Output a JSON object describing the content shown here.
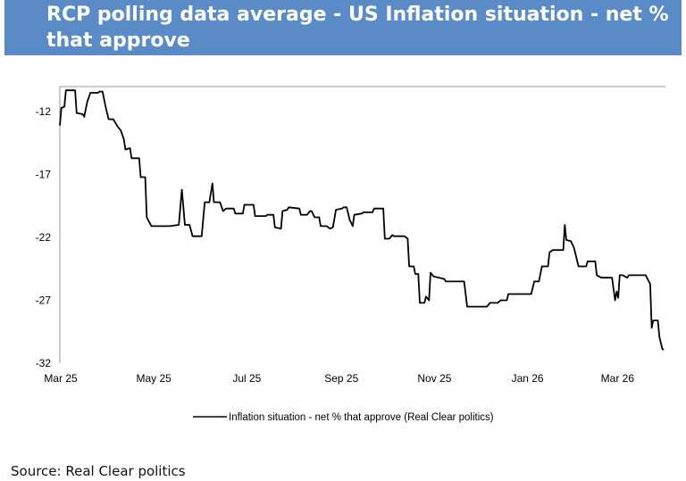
{
  "title": "RCP polling data average - US Inflation situation - net % that approve",
  "source": "Source: Real Clear politics",
  "chart_data": {
    "type": "line",
    "title": "RCP polling data average - US Inflation situation - net % that approve",
    "xlabel": "",
    "ylabel": "",
    "xlim": [
      "2025-03-01",
      "2026-04-02"
    ],
    "ylim": [
      -32,
      -10
    ],
    "yticks": [
      -12,
      -17,
      -22,
      -27,
      -32
    ],
    "xticks": [
      {
        "date": "2025-03-01",
        "label": "Mar 25"
      },
      {
        "date": "2025-05-01",
        "label": "May 25"
      },
      {
        "date": "2025-07-01",
        "label": "Jul 25"
      },
      {
        "date": "2025-09-01",
        "label": "Sep 25"
      },
      {
        "date": "2025-11-01",
        "label": "Nov 25"
      },
      {
        "date": "2026-01-01",
        "label": "Jan 26"
      },
      {
        "date": "2026-03-01",
        "label": "Mar 26"
      }
    ],
    "grid": false,
    "legend_placement": "bottom",
    "line_color": "#000000",
    "series": [
      {
        "name": "Inflation situation - net % that approve (Real Clear politics)",
        "points": [
          [
            "2025-03-01",
            -13.1
          ],
          [
            "2025-03-02",
            -11.7
          ],
          [
            "2025-03-04",
            -11.6
          ],
          [
            "2025-03-05",
            -10.3
          ],
          [
            "2025-03-11",
            -10.3
          ],
          [
            "2025-03-12",
            -12.1
          ],
          [
            "2025-03-16",
            -12.2
          ],
          [
            "2025-03-17",
            -12.4
          ],
          [
            "2025-03-19",
            -11.2
          ],
          [
            "2025-03-21",
            -10.5
          ],
          [
            "2025-03-26",
            -10.5
          ],
          [
            "2025-03-27",
            -10.4
          ],
          [
            "2025-03-29",
            -10.4
          ],
          [
            "2025-03-31",
            -11.6
          ],
          [
            "2025-04-02",
            -12.6
          ],
          [
            "2025-04-05",
            -12.6
          ],
          [
            "2025-04-08",
            -13.2
          ],
          [
            "2025-04-10",
            -13.5
          ],
          [
            "2025-04-12",
            -14.2
          ],
          [
            "2025-04-13",
            -15.0
          ],
          [
            "2025-04-16",
            -14.9
          ],
          [
            "2025-04-17",
            -15.7
          ],
          [
            "2025-04-22",
            -15.7
          ],
          [
            "2025-04-23",
            -17.2
          ],
          [
            "2025-04-26",
            -17.2
          ],
          [
            "2025-04-27",
            -20.4
          ],
          [
            "2025-04-30",
            -21.1
          ],
          [
            "2025-05-12",
            -21.1
          ],
          [
            "2025-05-18",
            -21.0
          ],
          [
            "2025-05-20",
            -18.2
          ],
          [
            "2025-05-22",
            -21.0
          ],
          [
            "2025-05-25",
            -21.0
          ],
          [
            "2025-05-27",
            -21.9
          ],
          [
            "2025-06-02",
            -21.9
          ],
          [
            "2025-06-04",
            -19.2
          ],
          [
            "2025-06-07",
            -19.2
          ],
          [
            "2025-06-09",
            -17.7
          ],
          [
            "2025-06-10",
            -19.2
          ],
          [
            "2025-06-14",
            -19.2
          ],
          [
            "2025-06-16",
            -19.9
          ],
          [
            "2025-06-18",
            -19.7
          ],
          [
            "2025-06-23",
            -19.7
          ],
          [
            "2025-06-24",
            -20.1
          ],
          [
            "2025-06-29",
            -20.1
          ],
          [
            "2025-06-30",
            -19.4
          ],
          [
            "2025-07-06",
            -19.4
          ],
          [
            "2025-07-07",
            -20.3
          ],
          [
            "2025-07-14",
            -20.3
          ],
          [
            "2025-07-15",
            -20.2
          ],
          [
            "2025-07-19",
            -20.2
          ],
          [
            "2025-07-20",
            -21.2
          ],
          [
            "2025-07-24",
            -21.3
          ],
          [
            "2025-07-25",
            -19.9
          ],
          [
            "2025-07-28",
            -19.8
          ],
          [
            "2025-07-29",
            -19.6
          ],
          [
            "2025-08-05",
            -19.7
          ],
          [
            "2025-08-06",
            -20.2
          ],
          [
            "2025-08-10",
            -20.2
          ],
          [
            "2025-08-12",
            -19.9
          ],
          [
            "2025-08-13",
            -19.9
          ],
          [
            "2025-08-15",
            -20.4
          ],
          [
            "2025-08-18",
            -20.4
          ],
          [
            "2025-08-19",
            -21.1
          ],
          [
            "2025-08-23",
            -21.1
          ],
          [
            "2025-08-25",
            -21.3
          ],
          [
            "2025-08-27",
            -21.2
          ],
          [
            "2025-08-29",
            -19.8
          ],
          [
            "2025-09-02",
            -19.7
          ],
          [
            "2025-09-03",
            -19.6
          ],
          [
            "2025-09-05",
            -19.6
          ],
          [
            "2025-09-07",
            -20.6
          ],
          [
            "2025-09-09",
            -21.1
          ],
          [
            "2025-09-10",
            -20.2
          ],
          [
            "2025-09-15",
            -20.1
          ],
          [
            "2025-09-16",
            -20.0
          ],
          [
            "2025-09-22",
            -20.0
          ],
          [
            "2025-09-23",
            -19.7
          ],
          [
            "2025-09-29",
            -19.7
          ],
          [
            "2025-09-30",
            -22.1
          ],
          [
            "2025-10-03",
            -22.1
          ],
          [
            "2025-10-05",
            -21.8
          ],
          [
            "2025-10-06",
            -21.9
          ],
          [
            "2025-10-13",
            -21.9
          ],
          [
            "2025-10-15",
            -22.1
          ],
          [
            "2025-10-16",
            -24.3
          ],
          [
            "2025-10-19",
            -24.3
          ],
          [
            "2025-10-20",
            -24.9
          ],
          [
            "2025-10-22",
            -24.9
          ],
          [
            "2025-10-23",
            -27.2
          ],
          [
            "2025-10-26",
            -27.2
          ],
          [
            "2025-10-27",
            -26.7
          ],
          [
            "2025-10-29",
            -27.0
          ],
          [
            "2025-10-30",
            -24.8
          ],
          [
            "2025-11-01",
            -25.1
          ],
          [
            "2025-11-08",
            -25.3
          ],
          [
            "2025-11-09",
            -25.5
          ],
          [
            "2025-11-21",
            -25.5
          ],
          [
            "2025-11-23",
            -27.5
          ],
          [
            "2025-12-06",
            -27.5
          ],
          [
            "2025-12-08",
            -27.2
          ],
          [
            "2025-12-13",
            -27.2
          ],
          [
            "2025-12-15",
            -27.0
          ],
          [
            "2025-12-19",
            -27.0
          ],
          [
            "2025-12-20",
            -26.5
          ],
          [
            "2026-01-04",
            -26.5
          ],
          [
            "2026-01-06",
            -25.5
          ],
          [
            "2026-01-09",
            -25.5
          ],
          [
            "2026-01-11",
            -24.3
          ],
          [
            "2026-01-15",
            -24.3
          ],
          [
            "2026-01-16",
            -23.2
          ],
          [
            "2026-01-18",
            -23.0
          ],
          [
            "2026-01-25",
            -23.0
          ],
          [
            "2026-01-26",
            -21.0
          ],
          [
            "2026-01-27",
            -22.2
          ],
          [
            "2026-01-30",
            -22.3
          ],
          [
            "2026-02-01",
            -22.8
          ],
          [
            "2026-02-04",
            -24.3
          ],
          [
            "2026-02-09",
            -24.3
          ],
          [
            "2026-02-10",
            -23.9
          ],
          [
            "2026-02-15",
            -23.9
          ],
          [
            "2026-02-16",
            -25.0
          ],
          [
            "2026-02-19",
            -25.2
          ],
          [
            "2026-02-26",
            -25.2
          ],
          [
            "2026-02-28",
            -27.0
          ],
          [
            "2026-03-01",
            -26.3
          ],
          [
            "2026-03-02",
            -26.8
          ],
          [
            "2026-03-03",
            -25.0
          ],
          [
            "2026-03-05",
            -25.0
          ],
          [
            "2026-03-08",
            -25.2
          ],
          [
            "2026-03-09",
            -25.0
          ],
          [
            "2026-03-20",
            -25.0
          ],
          [
            "2026-03-23",
            -25.7
          ],
          [
            "2026-03-24",
            -29.2
          ],
          [
            "2026-03-25",
            -28.6
          ],
          [
            "2026-03-28",
            -28.6
          ],
          [
            "2026-03-29",
            -29.9
          ],
          [
            "2026-03-31",
            -30.9
          ],
          [
            "2026-04-01",
            -30.9
          ]
        ]
      }
    ]
  }
}
